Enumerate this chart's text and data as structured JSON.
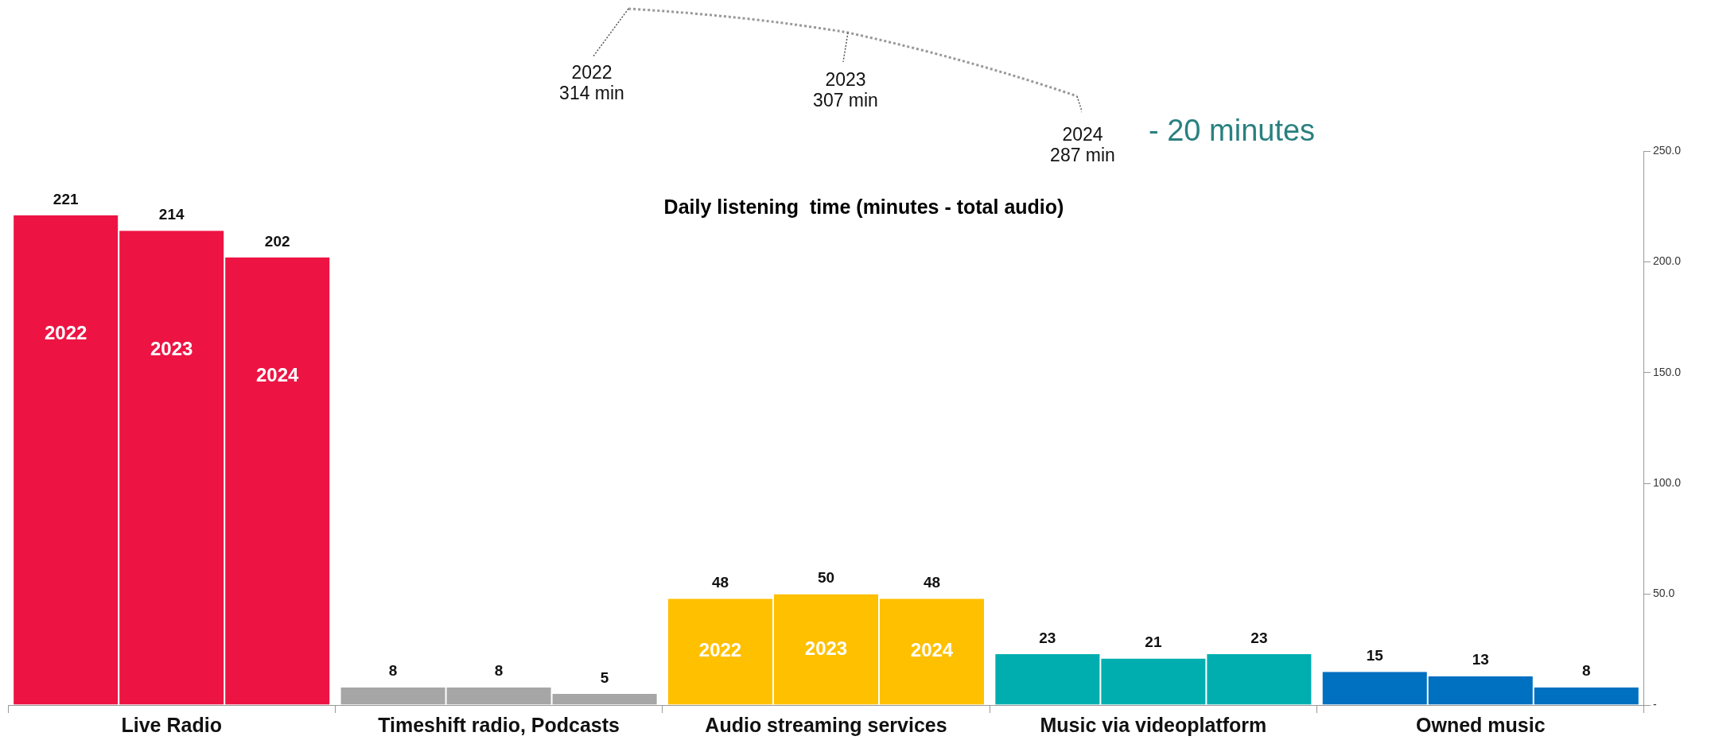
{
  "chart_data": {
    "type": "bar",
    "title": "Daily listening  time (minutes - total audio)",
    "categories": [
      "Live Radio",
      "Timeshift radio, Podcasts",
      "Audio streaming services",
      "Music via videoplatform",
      "Owned music"
    ],
    "series": [
      {
        "name": "2022",
        "colors": [
          "#ed1443",
          "#a6a6a6",
          "#ffc000",
          "#00aeb0",
          "#0070c0"
        ],
        "values": [
          221,
          8,
          48,
          23,
          15
        ]
      },
      {
        "name": "2023",
        "colors": [
          "#ed1443",
          "#a6a6a6",
          "#ffc000",
          "#00aeb0",
          "#0070c0"
        ],
        "values": [
          214,
          8,
          50,
          21,
          13
        ]
      },
      {
        "name": "2024",
        "colors": [
          "#ed1443",
          "#a6a6a6",
          "#ffc000",
          "#00aeb0",
          "#0070c0"
        ],
        "values": [
          202,
          5,
          48,
          23,
          8
        ]
      }
    ],
    "ylim": [
      0,
      250
    ],
    "yticks": [
      {
        "value": 0,
        "label": "-"
      },
      {
        "value": 50,
        "label": "50.0"
      },
      {
        "value": 100,
        "label": "100.0"
      },
      {
        "value": 150,
        "label": "150.0"
      },
      {
        "value": 200,
        "label": "200.0"
      },
      {
        "value": 250,
        "label": "250.0"
      }
    ],
    "annotations": [
      "2022\n314 min",
      "2023\n307 min",
      "2024\n287 min",
      "- 20 minutes"
    ],
    "data_labels": true,
    "grid": false,
    "legend": false
  }
}
